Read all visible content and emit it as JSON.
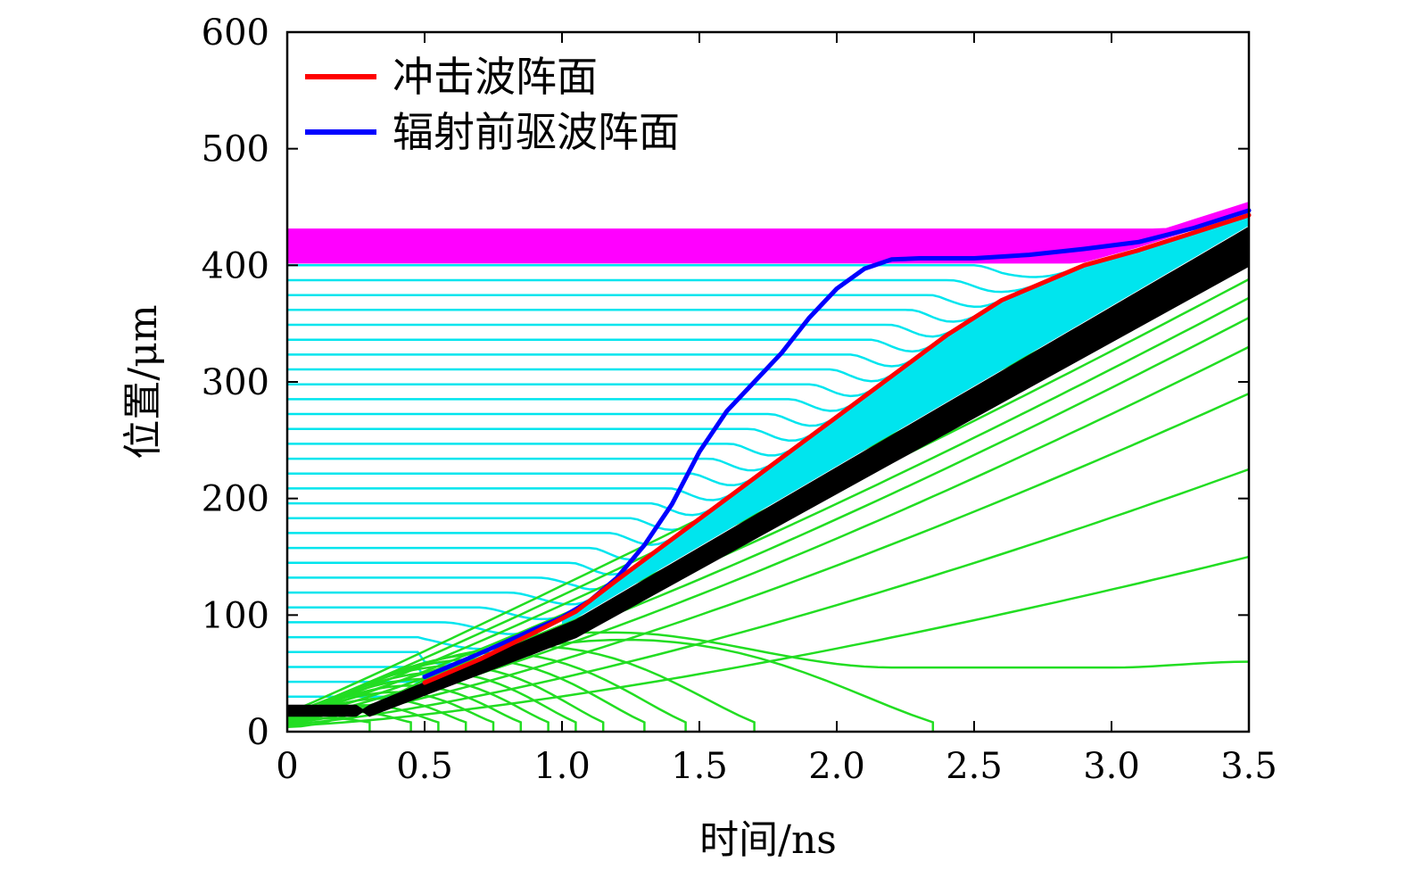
{
  "chart_data": {
    "type": "line",
    "xlabel": "时间/ns",
    "ylabel": "位置/μm",
    "xlim": [
      0,
      3.5
    ],
    "ylim": [
      0,
      600
    ],
    "x_ticks": [
      0,
      0.5,
      1.0,
      1.5,
      2.0,
      2.5,
      3.0,
      3.5
    ],
    "x_tick_labels": [
      "0",
      "0.5",
      "1.0",
      "1.5",
      "2.0",
      "2.5",
      "3.0",
      "3.5"
    ],
    "y_ticks": [
      0,
      100,
      200,
      300,
      400,
      500,
      600
    ],
    "y_tick_labels": [
      "0",
      "100",
      "200",
      "300",
      "400",
      "500",
      "600"
    ],
    "grid": false,
    "legend_position": "top-left",
    "colors": {
      "shock": "#ff0000",
      "precursor": "#0000ff",
      "magenta_band": "#ff00ff",
      "cyan_lines": "#00e5ee",
      "black_lines": "#000000",
      "green_lines": "#22dd22"
    },
    "series": [
      {
        "name": "冲击波阵面",
        "color": "#ff0000",
        "x": [
          0.5,
          0.7,
          0.9,
          1.05,
          1.2,
          1.4,
          1.6,
          1.8,
          2.0,
          2.2,
          2.4,
          2.6,
          2.75,
          2.9,
          3.1,
          3.3,
          3.5
        ],
        "y": [
          42,
          62,
          85,
          103,
          130,
          165,
          200,
          235,
          270,
          305,
          340,
          370,
          385,
          400,
          413,
          428,
          443
        ]
      },
      {
        "name": "辐射前驱波阵面",
        "color": "#0000ff",
        "x": [
          0.5,
          0.7,
          0.9,
          1.0,
          1.1,
          1.2,
          1.3,
          1.4,
          1.5,
          1.6,
          1.7,
          1.8,
          1.9,
          2.0,
          2.1,
          2.2,
          2.3,
          2.5,
          2.7,
          2.9,
          3.1,
          3.3,
          3.5
        ],
        "y": [
          47,
          67,
          88,
          98,
          112,
          132,
          160,
          195,
          240,
          275,
          300,
          325,
          355,
          380,
          397,
          405,
          406,
          406,
          409,
          414,
          420,
          432,
          447
        ]
      }
    ]
  }
}
